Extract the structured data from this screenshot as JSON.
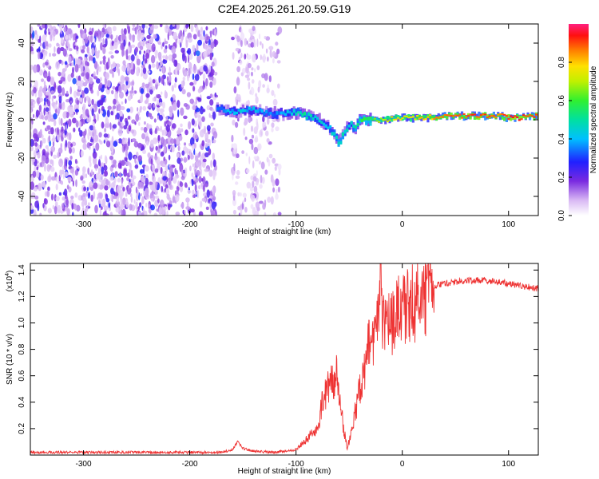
{
  "title": "C2E4.2025.261.20.59.G19",
  "chart_data": [
    {
      "type": "heatmap",
      "title": "C2E4.2025.261.20.59.G19",
      "xlabel": "Height of straight line (km)",
      "ylabel": "Frequency (Hz)",
      "xlim": [
        -350,
        128
      ],
      "ylim": [
        -50,
        50
      ],
      "xticks": [
        "-300",
        "-200",
        "-100",
        "0",
        "100"
      ],
      "xtick_values": [
        -300,
        -200,
        -100,
        0,
        100
      ],
      "yticks": [
        "-40",
        "-20",
        "0",
        "20",
        "40"
      ],
      "ytick_values": [
        -40,
        -20,
        0,
        20,
        40
      ],
      "colorbar": {
        "label": "Normalized spectral amplitude",
        "range": [
          0,
          1
        ],
        "ticks": [
          "0.0",
          "0.2",
          "0.4",
          "0.6",
          "0.8"
        ],
        "tick_values": [
          0.0,
          0.2,
          0.4,
          0.6,
          0.8
        ]
      },
      "noise_regions": [
        {
          "x_range": [
            -350,
            -175
          ],
          "f_range": [
            -50,
            50
          ],
          "amplitude": [
            0.05,
            0.25
          ]
        },
        {
          "x_range": [
            -160,
            -115
          ],
          "f_range": [
            -50,
            50
          ],
          "amplitude": [
            0.03,
            0.15
          ]
        }
      ],
      "ridge": {
        "x": [
          -175,
          -160,
          -140,
          -120,
          -100,
          -90,
          -80,
          -70,
          -65,
          -60,
          -55,
          -50,
          -45,
          -40,
          -30,
          -20,
          0,
          20,
          40,
          60,
          80,
          90,
          100,
          110,
          128
        ],
        "f": [
          6,
          4,
          5,
          3,
          4,
          2,
          0,
          -4,
          -8,
          -12,
          -6,
          -2,
          -4,
          0,
          0,
          0,
          1,
          1,
          2,
          2,
          2,
          2,
          1,
          1,
          2
        ],
        "amplitude": [
          0.35,
          0.4,
          0.4,
          0.35,
          0.45,
          0.5,
          0.45,
          0.4,
          0.45,
          0.5,
          0.45,
          0.45,
          0.5,
          0.55,
          0.6,
          0.7,
          0.75,
          0.8,
          0.85,
          0.9,
          0.9,
          0.85,
          0.95,
          0.9,
          0.9
        ]
      }
    },
    {
      "type": "line",
      "xlabel": "Height of straight line (km)",
      "ylabel": "SNR (10 * v/v)",
      "y_multiplier": "(x10",
      "y_multiplier_exp": "4",
      "xlim": [
        -350,
        128
      ],
      "ylim": [
        0,
        1.45
      ],
      "xticks": [
        "-300",
        "-200",
        "-100",
        "0",
        "100"
      ],
      "xtick_values": [
        -300,
        -200,
        -100,
        0,
        100
      ],
      "yticks": [
        "0.2",
        "0.4",
        "0.6",
        "0.8",
        "1.0",
        "1.2",
        "1.4"
      ],
      "ytick_values": [
        0.2,
        0.4,
        0.6,
        0.8,
        1.0,
        1.2,
        1.4
      ],
      "series": [
        {
          "name": "SNR",
          "color": "#ee3333",
          "x": [
            -350,
            -300,
            -250,
            -200,
            -170,
            -160,
            -155,
            -150,
            -140,
            -120,
            -110,
            -100,
            -90,
            -80,
            -75,
            -70,
            -65,
            -62,
            -60,
            -55,
            -52,
            -50,
            -45,
            -40,
            -35,
            -30,
            -25,
            -21,
            -20,
            -19,
            -15,
            -10,
            -5,
            0,
            10,
            20,
            30,
            40,
            60,
            80,
            100,
            110,
            120,
            128
          ],
          "y": [
            0.02,
            0.02,
            0.02,
            0.02,
            0.02,
            0.04,
            0.1,
            0.05,
            0.03,
            0.02,
            0.03,
            0.04,
            0.12,
            0.2,
            0.4,
            0.5,
            0.55,
            0.6,
            0.45,
            0.2,
            0.05,
            0.1,
            0.3,
            0.5,
            0.7,
            0.9,
            0.95,
            1.1,
            1.45,
            1.0,
            0.95,
            1.0,
            1.05,
            1.1,
            1.15,
            1.22,
            1.28,
            1.3,
            1.32,
            1.32,
            1.3,
            1.28,
            1.27,
            1.26
          ]
        }
      ]
    }
  ]
}
